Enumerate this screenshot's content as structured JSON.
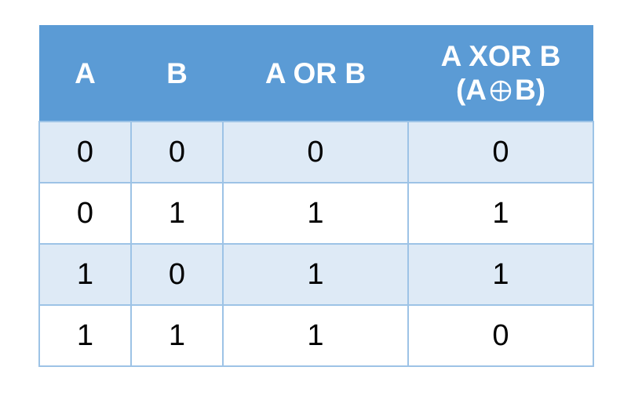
{
  "table": {
    "headers": {
      "a": "A",
      "b": "B",
      "or": "A OR B",
      "xor_line1": "A XOR B",
      "xor_line2_open": "(A",
      "xor_line2_symbol": "circled-plus-icon",
      "xor_line2_close": "B)"
    },
    "rows": [
      {
        "a": "0",
        "b": "0",
        "or": "0",
        "xor": "0"
      },
      {
        "a": "0",
        "b": "1",
        "or": "1",
        "xor": "1"
      },
      {
        "a": "1",
        "b": "0",
        "or": "1",
        "xor": "1"
      },
      {
        "a": "1",
        "b": "1",
        "or": "1",
        "xor": "0"
      }
    ],
    "colors": {
      "header_bg": "#5b9bd5",
      "header_text": "#ffffff",
      "band_bg": "#deeaf6",
      "border": "#9dc3e6"
    }
  }
}
